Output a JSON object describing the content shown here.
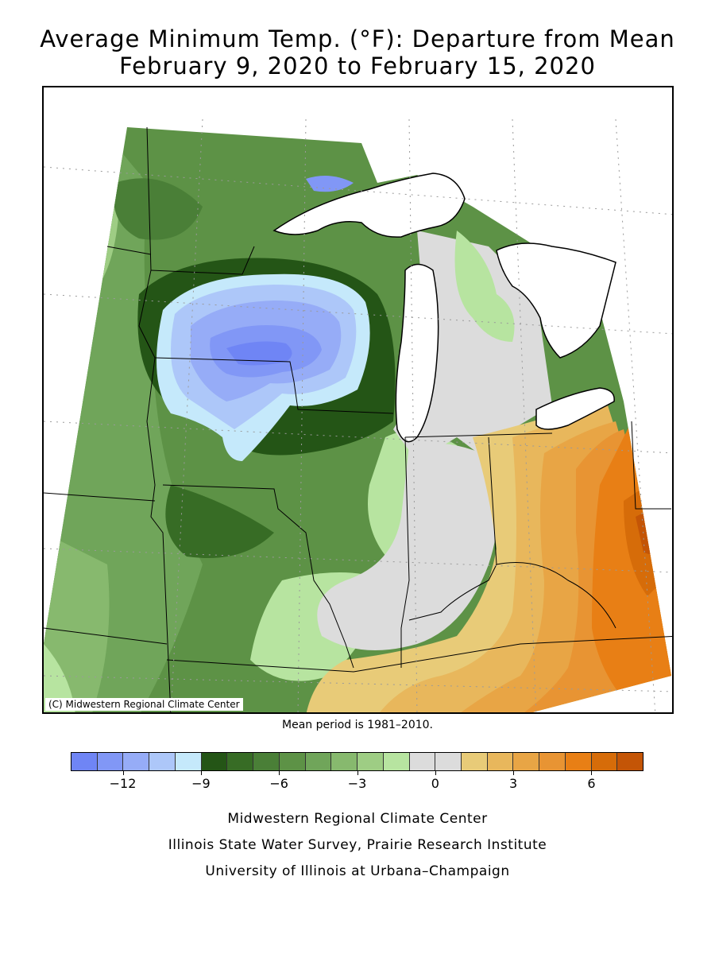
{
  "title_line1": "Average Minimum Temp. (°F): Departure from Mean",
  "title_line2": "February 9, 2020 to February 15, 2020",
  "copyright": "(C) Midwestern Regional Climate Center",
  "mean_period": "Mean period is 1981–2010.",
  "legend": {
    "colors": [
      "#6f85f5",
      "#8197f6",
      "#96acf7",
      "#adc7f9",
      "#c5e9fb",
      "#245516",
      "#376c25",
      "#4a7f37",
      "#5d9246",
      "#70a55a",
      "#87b96e",
      "#9ecd84",
      "#b7e4a0",
      "#dcdcdc",
      "#dcdcdc",
      "#e8cb78",
      "#e8b75c",
      "#e8a545",
      "#e89433",
      "#e87f15",
      "#d66c09",
      "#c45506"
    ],
    "tick_labels": [
      "−12",
      "−9",
      "−6",
      "−3",
      "0",
      "3",
      "6"
    ]
  },
  "credits": [
    "Midwestern Regional Climate Center",
    "Illinois State Water Survey, Prairie Research Institute",
    "University of Illinois at Urbana–Champaign"
  ]
}
